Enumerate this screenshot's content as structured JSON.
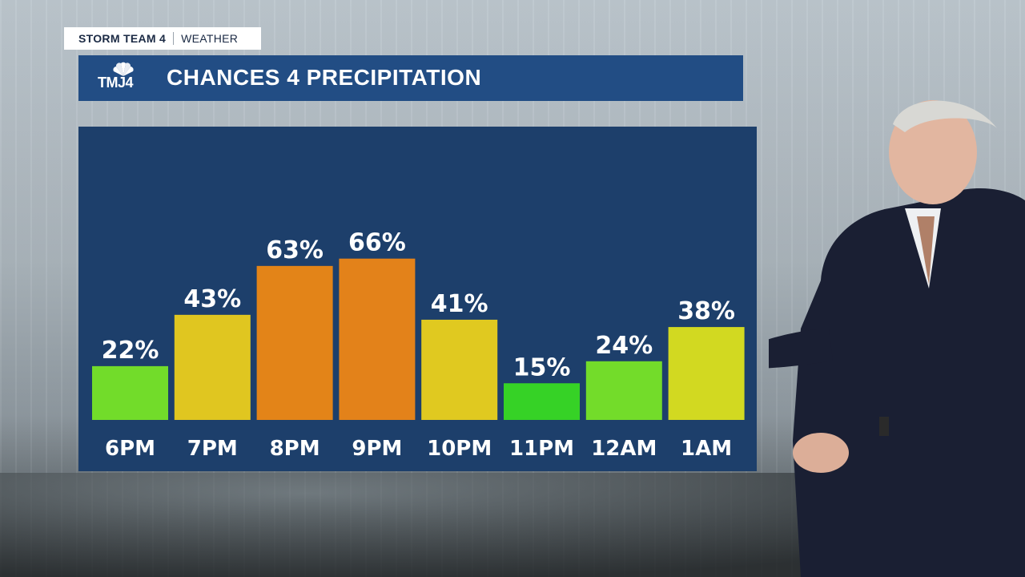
{
  "branding": {
    "team": "STORM TEAM 4",
    "section": "WEATHER",
    "logo_text": "TMJ4"
  },
  "title": "CHANCES 4 PRECIPITATION",
  "colors": {
    "title_bar": "#224d84",
    "panel": "#1d3f6b",
    "low": "#3fd62a",
    "low_mid": "#7fe02c",
    "mid": "#e2c81f",
    "high": "#e27e17"
  },
  "chart_data": {
    "type": "bar",
    "categories": [
      "6PM",
      "7PM",
      "8PM",
      "9PM",
      "10PM",
      "11PM",
      "12AM",
      "1AM"
    ],
    "values": [
      22,
      43,
      63,
      66,
      41,
      15,
      24,
      38
    ],
    "value_labels": [
      "22%",
      "43%",
      "63%",
      "66%",
      "41%",
      "15%",
      "24%",
      "38%"
    ],
    "bar_colors": [
      "#72dc2a",
      "#e0c620",
      "#e38418",
      "#e3821a",
      "#e0c920",
      "#36d226",
      "#73dc2a",
      "#d2d921"
    ],
    "ylim": [
      0,
      100
    ],
    "grid": false,
    "legend": "none"
  }
}
